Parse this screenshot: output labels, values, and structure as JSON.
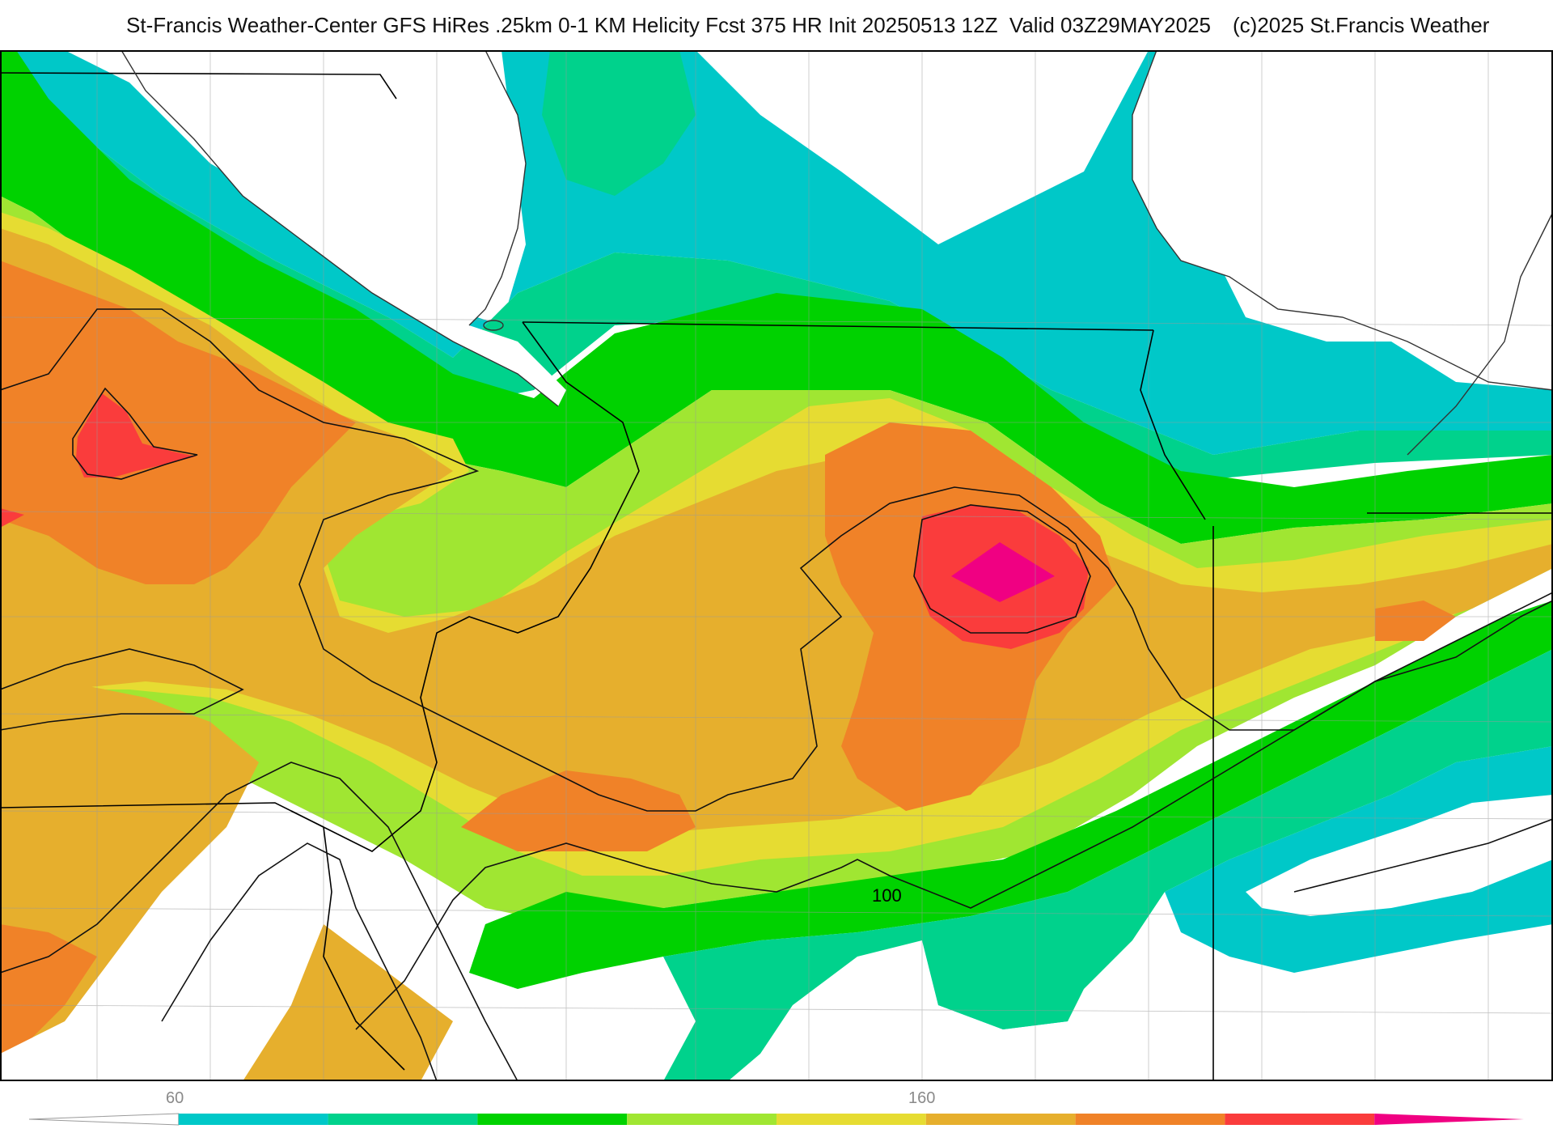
{
  "header": {
    "title": "St-Francis Weather-Center GFS HiRes .25km 0-1 KM Helicity Fcst 375 HR Init 20250513 12Z  Valid 03Z29MAY2025",
    "credit": "(c)2025 St.Francis Weather"
  },
  "map": {
    "contour_label": "100"
  },
  "legend": {
    "tick_labels": [
      "60",
      "160"
    ],
    "colors": [
      "#ffffff",
      "#00c8c8",
      "#00d28c",
      "#00d200",
      "#a0e632",
      "#e6dc32",
      "#e6af2d",
      "#f08228",
      "#fa3c3c",
      "#f00082"
    ]
  }
}
